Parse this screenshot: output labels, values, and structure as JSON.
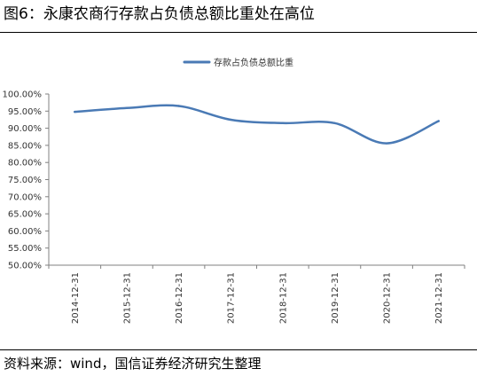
{
  "figure": {
    "title": "图6：永康农商行存款占负债总额比重处在高位",
    "source": "资料来源：wind，国信证券经济研究生整理"
  },
  "chart_data": {
    "type": "line",
    "title": "",
    "xlabel": "",
    "ylabel": "",
    "categories": [
      "2014-12-31",
      "2015-12-31",
      "2016-12-31",
      "2017-12-31",
      "2018-12-31",
      "2019-12-31",
      "2020-12-31",
      "2021-12-31"
    ],
    "y_ticks": [
      "100.00%",
      "95.00%",
      "90.00%",
      "85.00%",
      "80.00%",
      "75.00%",
      "70.00%",
      "65.00%",
      "60.00%",
      "55.00%",
      "50.00%"
    ],
    "ylim": [
      50,
      100
    ],
    "grid": false,
    "legend_position": "top-center",
    "line_color": "#4a7ab5",
    "series": [
      {
        "name": "存款占负债总额比重",
        "values": [
          94.8,
          95.9,
          96.5,
          92.5,
          91.5,
          91.5,
          85.6,
          92.1
        ]
      }
    ]
  }
}
